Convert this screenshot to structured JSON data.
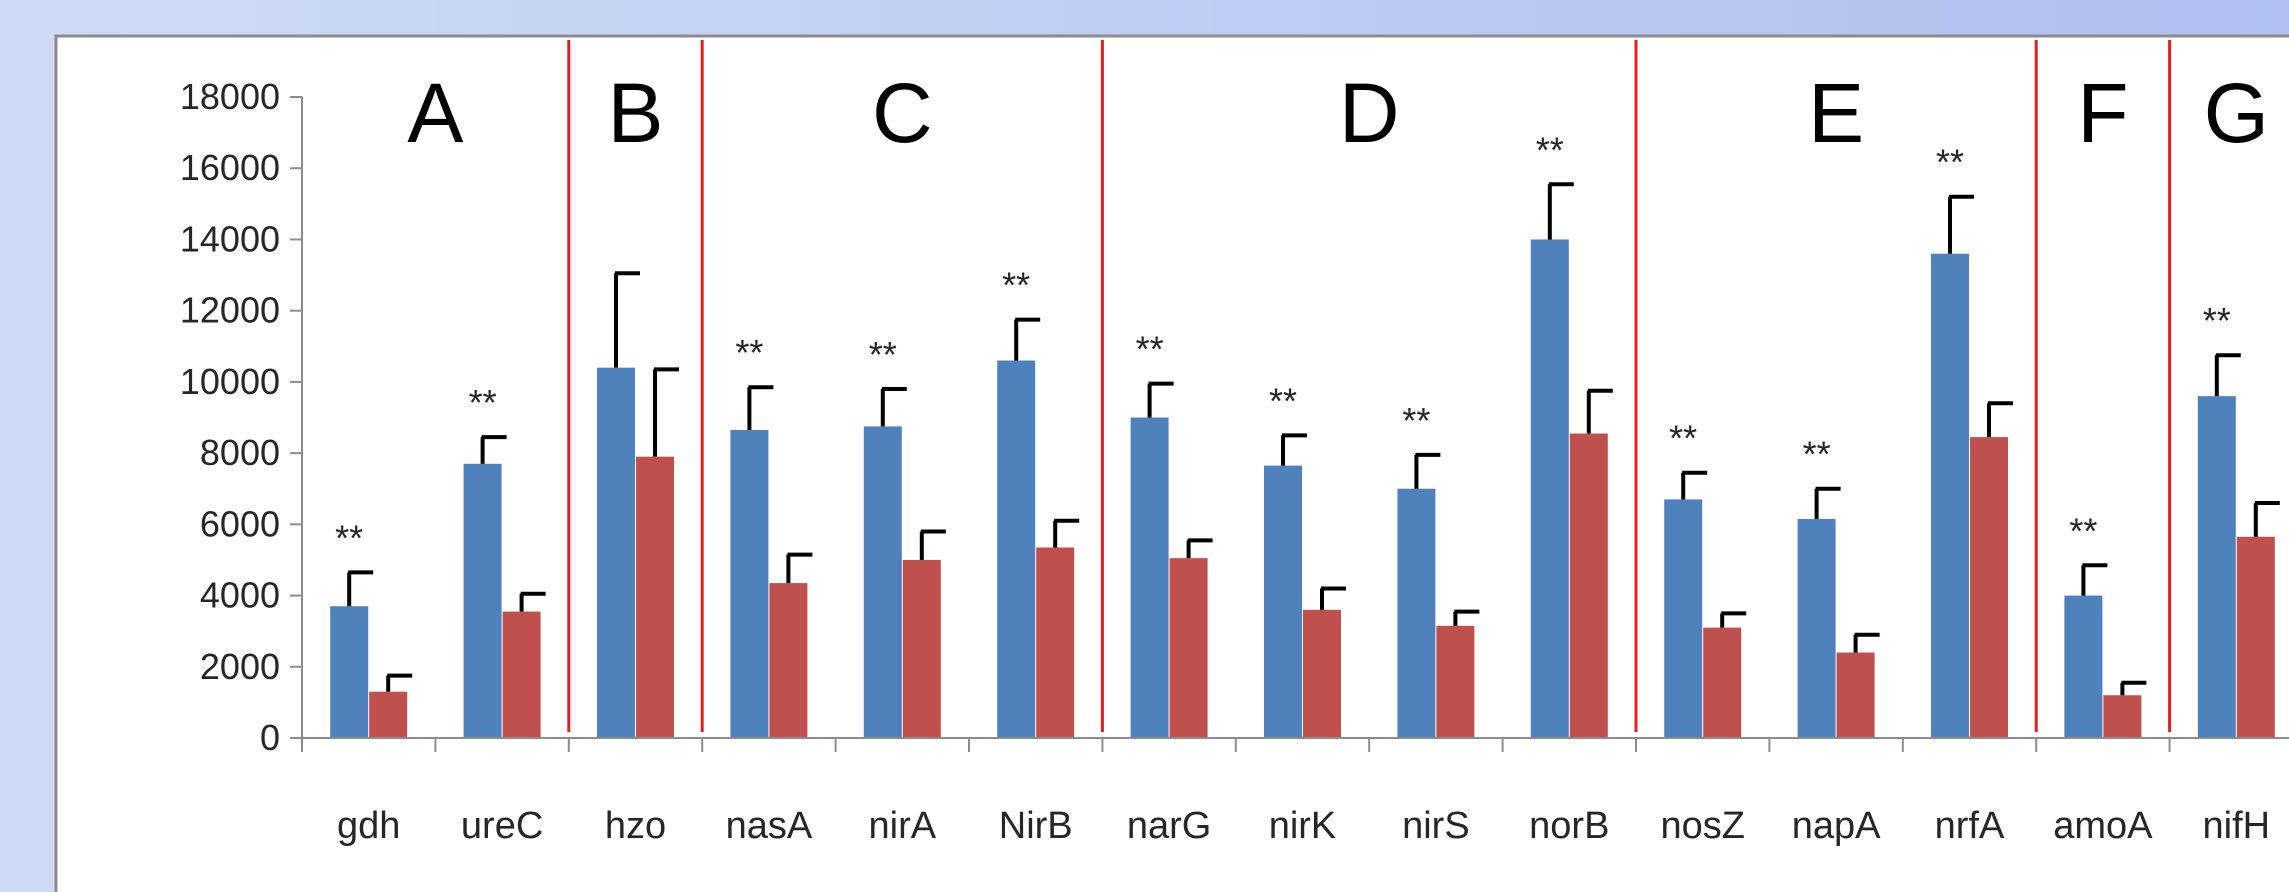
{
  "chart_data": {
    "type": "bar",
    "title": "",
    "xlabel": "",
    "ylabel": "",
    "ylim": [
      0,
      18000
    ],
    "yticks": [
      0,
      2000,
      4000,
      6000,
      8000,
      10000,
      12000,
      14000,
      16000,
      18000
    ],
    "categories": [
      "gdh",
      "ureC",
      "hzo",
      "nasA",
      "nirA",
      "NirB",
      "narG",
      "nirK",
      "nirS",
      "norB",
      "nosZ",
      "napA",
      "nrfA",
      "amoA",
      "nifH"
    ],
    "series": [
      {
        "color": "#4f81bd",
        "values": [
          3700,
          7700,
          10400,
          8650,
          8750,
          10600,
          9000,
          7650,
          7000,
          14000,
          6700,
          6150,
          13600,
          4000,
          9600
        ],
        "error": [
          950,
          750,
          2650,
          1200,
          1050,
          1150,
          950,
          850,
          950,
          1550,
          750,
          850,
          1600,
          850,
          1150
        ]
      },
      {
        "color": "#c0504d",
        "values": [
          1300,
          3550,
          7900,
          4350,
          5000,
          5350,
          5050,
          3600,
          3150,
          8550,
          3100,
          2400,
          8450,
          1200,
          5650
        ],
        "error": [
          450,
          500,
          2450,
          800,
          800,
          750,
          500,
          600,
          400,
          1200,
          400,
          500,
          950,
          350,
          950
        ]
      }
    ],
    "significance": [
      {
        "category": "gdh",
        "label": "**"
      },
      {
        "category": "ureC",
        "label": "**"
      },
      {
        "category": "nasA",
        "label": "**"
      },
      {
        "category": "nirA",
        "label": "**"
      },
      {
        "category": "NirB",
        "label": "**"
      },
      {
        "category": "narG",
        "label": "**"
      },
      {
        "category": "nirK",
        "label": "**"
      },
      {
        "category": "nirS",
        "label": "**"
      },
      {
        "category": "norB",
        "label": "**"
      },
      {
        "category": "nosZ",
        "label": "**"
      },
      {
        "category": "napA",
        "label": "**"
      },
      {
        "category": "nrfA",
        "label": "**"
      },
      {
        "category": "amoA",
        "label": "**"
      },
      {
        "category": "nifH",
        "label": "**"
      }
    ],
    "groups": [
      {
        "label": "A",
        "categories": [
          "gdh",
          "ureC"
        ]
      },
      {
        "label": "B",
        "categories": [
          "hzo"
        ]
      },
      {
        "label": "C",
        "categories": [
          "nasA",
          "nirA",
          "NirB"
        ]
      },
      {
        "label": "D",
        "categories": [
          "narG",
          "nirK",
          "nirS",
          "norB"
        ]
      },
      {
        "label": "E",
        "categories": [
          "nosZ",
          "napA",
          "nrfA"
        ]
      },
      {
        "label": "F",
        "categories": [
          "amoA"
        ]
      },
      {
        "label": "G",
        "categories": [
          "nifH"
        ]
      }
    ],
    "divider_color": "#e41e1e",
    "grid": false,
    "legend": "none"
  }
}
